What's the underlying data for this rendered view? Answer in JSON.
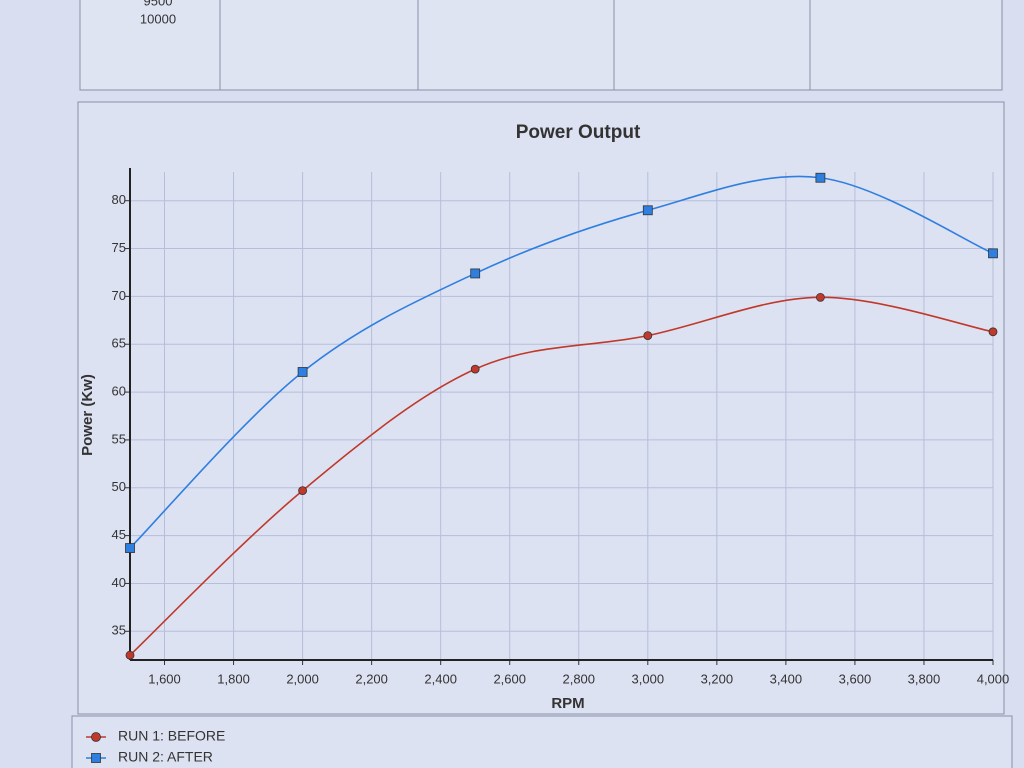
{
  "table_fragment": {
    "cells": [
      "9500",
      "10000"
    ]
  },
  "chart_data": {
    "type": "line",
    "title": "Power Output",
    "x_label": "RPM",
    "y_label": "Power (Kw)",
    "x": [
      1500,
      2000,
      2500,
      3000,
      3500,
      4000
    ],
    "series": [
      {
        "name": "RUN 1: BEFORE",
        "color": "#c0392b",
        "marker": "circle",
        "values": [
          32.5,
          49.7,
          62.4,
          65.9,
          69.9,
          66.3
        ]
      },
      {
        "name": "RUN 2: AFTER",
        "color": "#2f7fe0",
        "marker": "square",
        "values": [
          43.7,
          62.1,
          72.4,
          79.0,
          82.4,
          74.5
        ]
      }
    ],
    "xlim": [
      1500,
      4000
    ],
    "xticks": [
      {
        "value": 1600,
        "label": "1,600"
      },
      {
        "value": 1800,
        "label": "1,800"
      },
      {
        "value": 2000,
        "label": "2,000"
      },
      {
        "value": 2200,
        "label": "2,200"
      },
      {
        "value": 2400,
        "label": "2,400"
      },
      {
        "value": 2600,
        "label": "2,600"
      },
      {
        "value": 2800,
        "label": "2,800"
      },
      {
        "value": 3000,
        "label": "3,000"
      },
      {
        "value": 3200,
        "label": "3,200"
      },
      {
        "value": 3400,
        "label": "3,400"
      },
      {
        "value": 3600,
        "label": "3,600"
      },
      {
        "value": 3800,
        "label": "3,800"
      },
      {
        "value": 4000,
        "label": "4,000"
      }
    ],
    "ylim": [
      32,
      83
    ],
    "yticks": [
      35,
      40,
      45,
      50,
      55,
      60,
      65,
      70,
      75,
      80
    ],
    "grid": true,
    "legend": "bottom-left"
  }
}
